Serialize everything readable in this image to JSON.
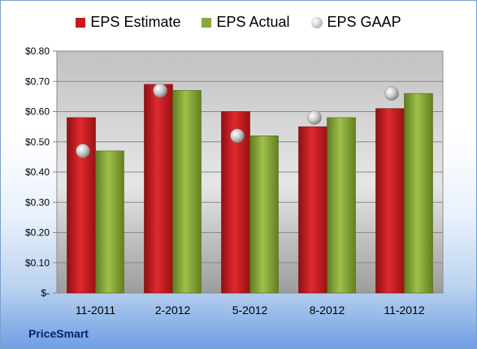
{
  "company_label": "PriceSmart",
  "chart_data": {
    "type": "bar",
    "categories": [
      "11-2011",
      "2-2012",
      "5-2012",
      "8-2012",
      "11-2012"
    ],
    "series": [
      {
        "name": "EPS Estimate",
        "kind": "bar",
        "color": "#c9171b",
        "values": [
          0.58,
          0.69,
          0.6,
          0.55,
          0.61
        ]
      },
      {
        "name": "EPS Actual",
        "kind": "bar",
        "color": "#8aa839",
        "values": [
          0.47,
          0.67,
          0.52,
          0.58,
          0.66
        ]
      },
      {
        "name": "EPS GAAP",
        "kind": "marker",
        "color": "#b8b8b8",
        "values": [
          0.47,
          0.67,
          0.52,
          0.58,
          0.66
        ]
      }
    ],
    "ylim": [
      0,
      0.8
    ],
    "yticks": [
      0,
      0.1,
      0.2,
      0.3,
      0.4,
      0.5,
      0.6,
      0.7,
      0.8
    ],
    "ytick_labels": [
      "$-",
      "$0.10",
      "$0.20",
      "$0.30",
      "$0.40",
      "$0.50",
      "$0.60",
      "$0.70",
      "$0.80"
    ],
    "grid": true,
    "legend_position": "top"
  }
}
